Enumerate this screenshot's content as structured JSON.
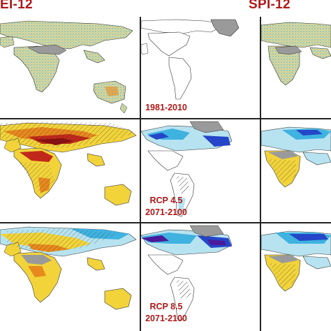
{
  "headers": {
    "left": "EI-12",
    "right": "SPI-12"
  },
  "rows": [
    {
      "id": "historical",
      "period_line1": "1981-2010",
      "period_line2": ""
    },
    {
      "id": "rcp45",
      "period_line1": "RCP 4.5",
      "period_line2": "2071-2100"
    },
    {
      "id": "rcp85",
      "period_line1": "RCP 8.5",
      "period_line2": "2071-2100"
    }
  ],
  "colors": {
    "header_text": "#b01818",
    "no_data": "#9a9a9a",
    "near_normal": "#cfd9a8",
    "dry": "#f2d43a",
    "very_dry": "#e8891e",
    "extreme_dry": "#c0281a",
    "severe_dry": "#8a1010",
    "wet": "#b7e3f0",
    "very_wet": "#3fb2e0",
    "extreme_wet": "#2546c8",
    "severe_wet": "#4a1a9a"
  }
}
